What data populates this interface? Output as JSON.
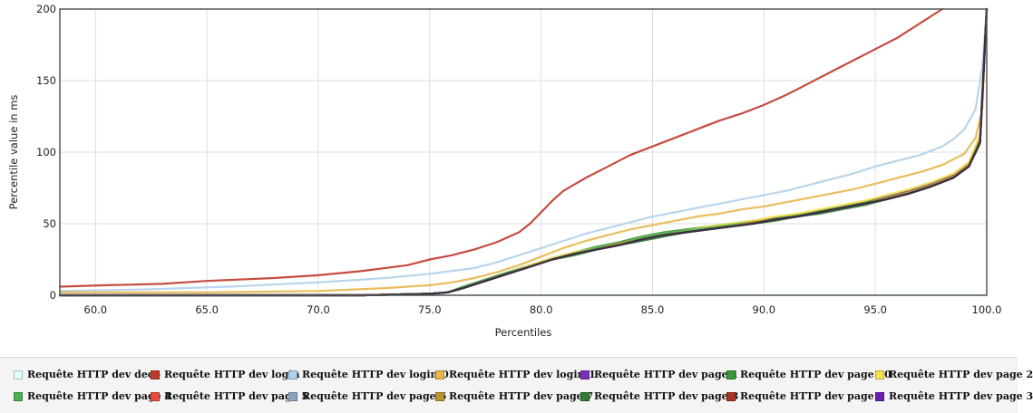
{
  "chart_data": {
    "type": "line",
    "xlabel": "Percentiles",
    "ylabel": "Percentile value in ms",
    "xlim": [
      58.4,
      100.0
    ],
    "ylim": [
      0,
      200
    ],
    "x_ticks": [
      "60.0",
      "65.0",
      "70.0",
      "75.0",
      "80.0",
      "85.0",
      "90.0",
      "95.0",
      "100.0"
    ],
    "y_ticks": [
      "0",
      "50",
      "100",
      "150",
      "200"
    ],
    "grid": true,
    "legend_position": "bottom",
    "series": [
      {
        "name": "Requête HTTP dev deco",
        "color": "#e0ffff",
        "x": [
          58.4,
          100.0
        ],
        "y": [
          0,
          0
        ]
      },
      {
        "name": "Requête HTTP dev login",
        "color": "#c0392b",
        "x": [
          58.4,
          60.5,
          63.0,
          65.0,
          68.0,
          70.0,
          72.0,
          74.0,
          75.0,
          76.0,
          77.0,
          78.0,
          79.0,
          79.5,
          80.0,
          80.5,
          81.0,
          82.0,
          83.0,
          84.0,
          85.0,
          86.0,
          87.0,
          88.0,
          89.0,
          90.0,
          91.0,
          92.0,
          93.0,
          94.0,
          95.0,
          96.0,
          97.0,
          98.0
        ],
        "y": [
          6,
          7,
          8,
          10,
          12,
          14,
          17,
          21,
          25,
          28,
          32,
          37,
          44,
          50,
          58,
          66,
          73,
          82,
          90,
          98,
          104,
          110,
          116,
          122,
          127,
          133,
          140,
          148,
          156,
          164,
          172,
          180,
          190,
          200
        ]
      },
      {
        "name": "Requête HTTP dev login-0",
        "color": "#b0d0ea",
        "x": [
          58.4,
          62.0,
          66.0,
          70.0,
          73.0,
          75.0,
          77.0,
          78.0,
          79.0,
          80.0,
          81.0,
          82.0,
          83.0,
          84.0,
          85.0,
          86.0,
          87.0,
          88.0,
          89.0,
          90.0,
          91.0,
          92.0,
          93.0,
          94.0,
          95.0,
          96.0,
          97.0,
          98.0,
          98.5,
          99.0,
          99.5,
          99.8,
          100.0
        ],
        "y": [
          3,
          4,
          6,
          9,
          12,
          15,
          19,
          23,
          28,
          33,
          38,
          43,
          47,
          51,
          55,
          58,
          61,
          64,
          67,
          70,
          73,
          77,
          81,
          85,
          90,
          94,
          98,
          104,
          109,
          116,
          130,
          160,
          200
        ]
      },
      {
        "name": "Requête HTTP dev login-1",
        "color": "#e8b64a",
        "x": [
          58.4,
          65.0,
          70.0,
          73.0,
          75.0,
          76.0,
          77.0,
          78.0,
          79.0,
          80.0,
          81.0,
          82.0,
          83.0,
          84.0,
          85.0,
          86.0,
          87.0,
          88.0,
          89.0,
          90.0,
          91.0,
          92.0,
          93.0,
          94.0,
          95.0,
          96.0,
          97.0,
          98.0,
          99.0,
          99.5,
          99.8,
          100.0
        ],
        "y": [
          2,
          2,
          3,
          5,
          7,
          9,
          12,
          16,
          21,
          27,
          33,
          38,
          42,
          46,
          49,
          52,
          55,
          57,
          60,
          62,
          65,
          68,
          71,
          74,
          78,
          82,
          86,
          91,
          99,
          110,
          130,
          200
        ]
      },
      {
        "name": "Requête HTTP dev page 1",
        "color": "#7b2fbe",
        "x": [
          58.4,
          72.0,
          75.0,
          75.8,
          76.5,
          77.5,
          78.5,
          79.5,
          80.5,
          81.5,
          82.5,
          83.5,
          84.5,
          85.5,
          86.5,
          87.5,
          88.5,
          89.5,
          90.5,
          91.5,
          92.5,
          93.5,
          94.5,
          95.5,
          96.5,
          97.5,
          98.5,
          99.2,
          99.7,
          100.0
        ],
        "y": [
          0,
          0,
          1,
          2,
          5,
          10,
          15,
          20,
          25,
          29,
          33,
          36,
          39,
          42,
          45,
          47,
          49,
          51,
          54,
          56,
          59,
          62,
          65,
          69,
          73,
          78,
          84,
          92,
          110,
          200
        ]
      },
      {
        "name": "Requête HTTP dev page 10",
        "color": "#3a9a3a",
        "x": [
          58.4,
          72.0,
          75.0,
          75.8,
          76.5,
          77.5,
          78.5,
          79.5,
          80.5,
          81.5,
          82.5,
          83.5,
          84.5,
          85.5,
          86.5,
          87.5,
          88.5,
          89.5,
          90.5,
          91.5,
          92.5,
          93.5,
          94.5,
          95.5,
          96.5,
          97.5,
          98.5,
          99.2,
          99.7,
          100.0
        ],
        "y": [
          0,
          0,
          1,
          2,
          6,
          11,
          16,
          21,
          26,
          30,
          34,
          37,
          41,
          44,
          46,
          48,
          50,
          52,
          54,
          56,
          59,
          62,
          65,
          68,
          72,
          77,
          83,
          91,
          108,
          200
        ]
      },
      {
        "name": "Requête HTTP dev page 2",
        "color": "#f4e04a",
        "x": [
          58.4,
          72.0,
          75.0,
          75.8,
          76.5,
          77.5,
          78.5,
          79.5,
          80.5,
          81.5,
          82.5,
          83.5,
          84.5,
          85.5,
          86.5,
          87.5,
          88.5,
          89.5,
          90.5,
          91.5,
          92.5,
          93.5,
          94.5,
          95.5,
          96.5,
          97.5,
          98.5,
          99.2,
          99.7,
          100.0
        ],
        "y": [
          0,
          0,
          1,
          2,
          5,
          10,
          15,
          21,
          26,
          30,
          33,
          36,
          40,
          43,
          45,
          48,
          50,
          52,
          55,
          57,
          60,
          63,
          66,
          70,
          74,
          79,
          85,
          93,
          112,
          200
        ]
      },
      {
        "name": "Requête HTTP dev page 4",
        "color": "#4caf50",
        "x": [
          58.4,
          72.0,
          75.0,
          75.8,
          76.5,
          77.5,
          78.5,
          79.5,
          80.5,
          81.5,
          82.5,
          83.5,
          84.5,
          85.5,
          86.5,
          87.5,
          88.5,
          89.5,
          90.5,
          91.5,
          92.5,
          93.5,
          94.5,
          95.5,
          96.5,
          97.5,
          98.5,
          99.2,
          99.7,
          100.0
        ],
        "y": [
          0,
          0,
          1,
          2,
          5,
          10,
          15,
          20,
          25,
          29,
          33,
          36,
          40,
          43,
          45,
          47,
          49,
          51,
          53,
          55,
          58,
          61,
          64,
          68,
          72,
          77,
          83,
          91,
          108,
          200
        ]
      },
      {
        "name": "Requête HTTP dev page 5",
        "color": "#e74c3c",
        "x": [
          58.4,
          72.0,
          75.0,
          75.8,
          76.5,
          77.5,
          78.5,
          79.5,
          80.5,
          81.5,
          82.5,
          83.5,
          84.5,
          85.5,
          86.5,
          87.5,
          88.5,
          89.5,
          90.5,
          91.5,
          92.5,
          93.5,
          94.5,
          95.5,
          96.5,
          97.5,
          98.5,
          99.2,
          99.7,
          100.0
        ],
        "y": [
          0,
          0,
          1,
          2,
          5,
          10,
          15,
          20,
          25,
          29,
          32,
          35,
          39,
          42,
          44,
          46,
          48,
          51,
          53,
          55,
          58,
          61,
          64,
          67,
          71,
          76,
          82,
          90,
          107,
          200
        ]
      },
      {
        "name": "Requête HTTP dev page 6",
        "color": "#8aa4c0",
        "x": [
          58.4,
          72.0,
          75.0,
          75.8,
          76.5,
          77.5,
          78.5,
          79.5,
          80.5,
          81.5,
          82.5,
          83.5,
          84.5,
          85.5,
          86.5,
          87.5,
          88.5,
          89.5,
          90.5,
          91.5,
          92.5,
          93.5,
          94.5,
          95.5,
          96.5,
          97.5,
          98.5,
          99.2,
          99.7,
          100.0
        ],
        "y": [
          0,
          0,
          1,
          2,
          5,
          10,
          15,
          20,
          25,
          29,
          32,
          35,
          39,
          42,
          44,
          46,
          48,
          50,
          53,
          55,
          58,
          61,
          64,
          67,
          71,
          76,
          82,
          90,
          107,
          200
        ]
      },
      {
        "name": "Requête HTTP dev page 7",
        "color": "#b8962e",
        "x": [
          58.4,
          72.0,
          75.0,
          75.8,
          76.5,
          77.5,
          78.5,
          79.5,
          80.5,
          81.5,
          82.5,
          83.5,
          84.5,
          85.5,
          86.5,
          87.5,
          88.5,
          89.5,
          90.5,
          91.5,
          92.5,
          93.5,
          94.5,
          95.5,
          96.5,
          97.5,
          98.5,
          99.2,
          99.7,
          100.0
        ],
        "y": [
          0,
          0,
          1,
          2,
          5,
          10,
          15,
          20,
          25,
          29,
          32,
          36,
          39,
          42,
          44,
          46,
          48,
          51,
          53,
          55,
          58,
          61,
          64,
          68,
          72,
          77,
          83,
          91,
          108,
          200
        ]
      },
      {
        "name": "Requête HTTP dev page 8",
        "color": "#2e7d32",
        "x": [
          58.4,
          72.0,
          75.0,
          75.8,
          76.5,
          77.5,
          78.5,
          79.5,
          80.5,
          81.5,
          82.5,
          83.5,
          84.5,
          85.5,
          86.5,
          87.5,
          88.5,
          89.5,
          90.5,
          91.5,
          92.5,
          93.5,
          94.5,
          95.5,
          96.5,
          97.5,
          98.5,
          99.2,
          99.7,
          100.0
        ],
        "y": [
          0,
          0,
          1,
          2,
          5,
          10,
          15,
          20,
          25,
          28,
          32,
          35,
          38,
          41,
          44,
          46,
          48,
          50,
          52,
          55,
          57,
          60,
          63,
          67,
          71,
          76,
          82,
          90,
          106,
          200
        ]
      },
      {
        "name": "Requête HTTP dev page 9",
        "color": "#a93226",
        "x": [
          58.4,
          72.0,
          75.0,
          75.8,
          76.5,
          77.5,
          78.5,
          79.5,
          80.5,
          81.5,
          82.5,
          83.5,
          84.5,
          85.5,
          86.5,
          87.5,
          88.5,
          89.5,
          90.5,
          91.5,
          92.5,
          93.5,
          94.5,
          95.5,
          96.5,
          97.5,
          98.5,
          99.2,
          99.7,
          100.0
        ],
        "y": [
          0,
          0,
          1,
          2,
          5,
          10,
          15,
          20,
          25,
          29,
          32,
          35,
          39,
          42,
          44,
          46,
          48,
          50,
          53,
          55,
          58,
          61,
          64,
          67,
          71,
          76,
          82,
          90,
          107,
          200
        ]
      },
      {
        "name": "Requête HTTP dev page 3",
        "color": "#6a1fb0",
        "x": [
          58.4,
          72.0,
          75.0,
          75.8,
          76.5,
          77.5,
          78.5,
          79.5,
          80.5,
          81.5,
          82.5,
          83.5,
          84.5,
          85.5,
          86.5,
          87.5,
          88.5,
          89.5,
          90.5,
          91.5,
          92.5,
          93.5,
          94.5,
          95.5,
          96.5,
          97.5,
          98.5,
          99.2,
          99.7,
          100.0
        ],
        "y": [
          0,
          0,
          1,
          2,
          5,
          10,
          15,
          20,
          25,
          29,
          32,
          35,
          39,
          42,
          44,
          46,
          48,
          50,
          53,
          55,
          58,
          61,
          64,
          67,
          71,
          76,
          82,
          90,
          107,
          200
        ]
      },
      {
        "name": "",
        "color": "#333333",
        "x": [
          58.4,
          72.0,
          75.0,
          75.8,
          76.5,
          77.5,
          78.5,
          79.5,
          80.5,
          81.5,
          82.5,
          83.5,
          84.5,
          85.5,
          86.5,
          87.5,
          88.5,
          89.5,
          90.5,
          91.5,
          92.5,
          93.5,
          94.5,
          95.5,
          96.5,
          97.5,
          98.5,
          99.2,
          99.7,
          100.0
        ],
        "y": [
          0,
          0,
          1,
          2,
          5,
          10,
          15,
          20,
          25,
          29,
          32,
          35,
          39,
          42,
          44,
          46,
          48,
          50,
          53,
          55,
          58,
          61,
          64,
          67,
          71,
          76,
          82,
          90,
          107,
          200
        ]
      }
    ]
  }
}
